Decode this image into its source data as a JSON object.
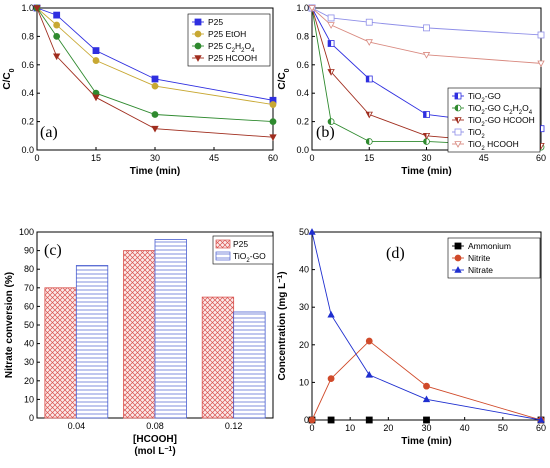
{
  "chart_data": [
    {
      "type": "line",
      "panel_label": "(a)",
      "xlabel": "Time (min)",
      "ylabel": "C/C",
      "ylabel_sub": "0",
      "xlim": [
        0,
        60
      ],
      "ylim": [
        0,
        1
      ],
      "xticks": [
        "0",
        "15",
        "30",
        "45",
        "60"
      ],
      "yticks": [
        "0.0",
        "0.2",
        "0.4",
        "0.6",
        "0.8",
        "1.0"
      ],
      "legend_position": "top-right",
      "series": [
        {
          "name": "P25",
          "color": "#2f2fe0",
          "marker": "square",
          "x": [
            0,
            5,
            15,
            30,
            60
          ],
          "y": [
            1.0,
            0.95,
            0.7,
            0.5,
            0.35
          ]
        },
        {
          "name": "P25 EtOH",
          "color": "#c8a833",
          "marker": "circle",
          "x": [
            0,
            5,
            15,
            30,
            60
          ],
          "y": [
            1.0,
            0.88,
            0.63,
            0.45,
            0.32
          ]
        },
        {
          "name": "P25 C2H2O4",
          "legend_html": "P25 C<tspan baseline-shift='sub' font-size='6'>2</tspan>H<tspan baseline-shift='sub' font-size='6'>2</tspan>O<tspan baseline-shift='sub' font-size='6'>4</tspan>",
          "color": "#2f8a2f",
          "marker": "circle",
          "x": [
            0,
            5,
            15,
            30,
            60
          ],
          "y": [
            1.0,
            0.8,
            0.4,
            0.25,
            0.2
          ]
        },
        {
          "name": "P25 HCOOH",
          "color": "#a02d1e",
          "marker": "tri-down",
          "x": [
            0,
            5,
            15,
            30,
            60
          ],
          "y": [
            1.0,
            0.66,
            0.37,
            0.15,
            0.09
          ]
        }
      ]
    },
    {
      "type": "line",
      "panel_label": "(b)",
      "xlabel": "Time (min)",
      "ylabel": "C/C",
      "ylabel_sub": "0",
      "xlim": [
        0,
        60
      ],
      "ylim": [
        0,
        1
      ],
      "xticks": [
        "0",
        "15",
        "30",
        "45",
        "60"
      ],
      "yticks": [
        "0.0",
        "0.2",
        "0.4",
        "0.6",
        "0.8",
        "1.0"
      ],
      "legend_position": "bottom-right",
      "series": [
        {
          "name": "TiO2-GO",
          "legend_html": "TiO<tspan baseline-shift='sub' font-size='6'>2</tspan>-GO",
          "color": "#2f2fe0",
          "marker": "square-half",
          "x": [
            0,
            5,
            15,
            30,
            60
          ],
          "y": [
            1.0,
            0.75,
            0.5,
            0.25,
            0.15
          ]
        },
        {
          "name": "TiO2-GO C2H2O4",
          "legend_html": "TiO<tspan baseline-shift='sub' font-size='6'>2</tspan>-GO C<tspan baseline-shift='sub' font-size='6'>2</tspan>H<tspan baseline-shift='sub' font-size='6'>2</tspan>O<tspan baseline-shift='sub' font-size='6'>4</tspan>",
          "color": "#2f8a2f",
          "marker": "circle-half",
          "x": [
            0,
            5,
            15,
            30,
            60
          ],
          "y": [
            1.0,
            0.2,
            0.06,
            0.06,
            0.02
          ]
        },
        {
          "name": "TiO2-GO HCOOH",
          "legend_html": "TiO<tspan baseline-shift='sub' font-size='6'>2</tspan>-GO HCOOH",
          "color": "#a02d1e",
          "marker": "tri-down-half",
          "x": [
            0,
            5,
            15,
            30,
            60
          ],
          "y": [
            1.0,
            0.55,
            0.25,
            0.1,
            0.03
          ]
        },
        {
          "name": "TiO2",
          "legend_html": "TiO<tspan baseline-shift='sub' font-size='6'>2</tspan>",
          "color": "#8f8fe8",
          "marker": "square-open",
          "x": [
            0,
            5,
            15,
            30,
            60
          ],
          "y": [
            1.0,
            0.93,
            0.9,
            0.86,
            0.81
          ]
        },
        {
          "name": "TiO2 HCOOH",
          "legend_html": "TiO<tspan baseline-shift='sub' font-size='6'>2</tspan> HCOOH",
          "color": "#d98a80",
          "marker": "tri-down-open",
          "x": [
            0,
            5,
            15,
            30,
            60
          ],
          "y": [
            1.0,
            0.88,
            0.76,
            0.67,
            0.61
          ]
        }
      ]
    },
    {
      "type": "bar",
      "panel_label": "(c)",
      "xlabel": "[HCOOH]",
      "xlabel_line2": "(mol L",
      "xlabel_line2_sup": "−1",
      "xlabel_line2_end": ")",
      "ylabel": "Nitrate conversion (%)",
      "ylim": [
        0,
        100
      ],
      "yticks": [
        "0",
        "10",
        "20",
        "30",
        "40",
        "50",
        "60",
        "70",
        "80",
        "90",
        "100"
      ],
      "categories": [
        "0.04",
        "0.08",
        "0.12"
      ],
      "legend_position": "top-right",
      "series": [
        {
          "name": "P25",
          "pattern": "crosshatch",
          "color": "#d9534f",
          "values": [
            70,
            90,
            65
          ]
        },
        {
          "name": "TiO2-GO",
          "legend_html": "TiO<tspan baseline-shift='sub' font-size='6'>2</tspan>-GO",
          "pattern": "hlines",
          "color": "#4a5fd0",
          "values": [
            82,
            96,
            57
          ]
        }
      ]
    },
    {
      "type": "line",
      "panel_label": "(d)",
      "xlabel": "Time (min)",
      "ylabel": "Concentration (mg L",
      "ylabel_sup": "−1",
      "ylabel_end": ")",
      "xlim": [
        0,
        60
      ],
      "ylim": [
        0,
        50
      ],
      "xticks": [
        "0",
        "10",
        "20",
        "30",
        "40",
        "50",
        "60"
      ],
      "yticks": [
        "0",
        "10",
        "20",
        "30",
        "40",
        "50"
      ],
      "legend_position": "top-right",
      "series": [
        {
          "name": "Ammonium",
          "color": "#000000",
          "marker": "square",
          "x": [
            0,
            5,
            15,
            30,
            60
          ],
          "y": [
            0,
            0,
            0,
            0,
            0
          ]
        },
        {
          "name": "Nitrite",
          "color": "#d04a2a",
          "marker": "circle",
          "x": [
            0,
            5,
            15,
            30,
            60
          ],
          "y": [
            0,
            11,
            21,
            9,
            0
          ]
        },
        {
          "name": "Nitrate",
          "color": "#1f2fcf",
          "marker": "tri-up",
          "x": [
            0,
            5,
            15,
            30,
            60
          ],
          "y": [
            50,
            28,
            12,
            5.5,
            0
          ]
        }
      ]
    }
  ]
}
